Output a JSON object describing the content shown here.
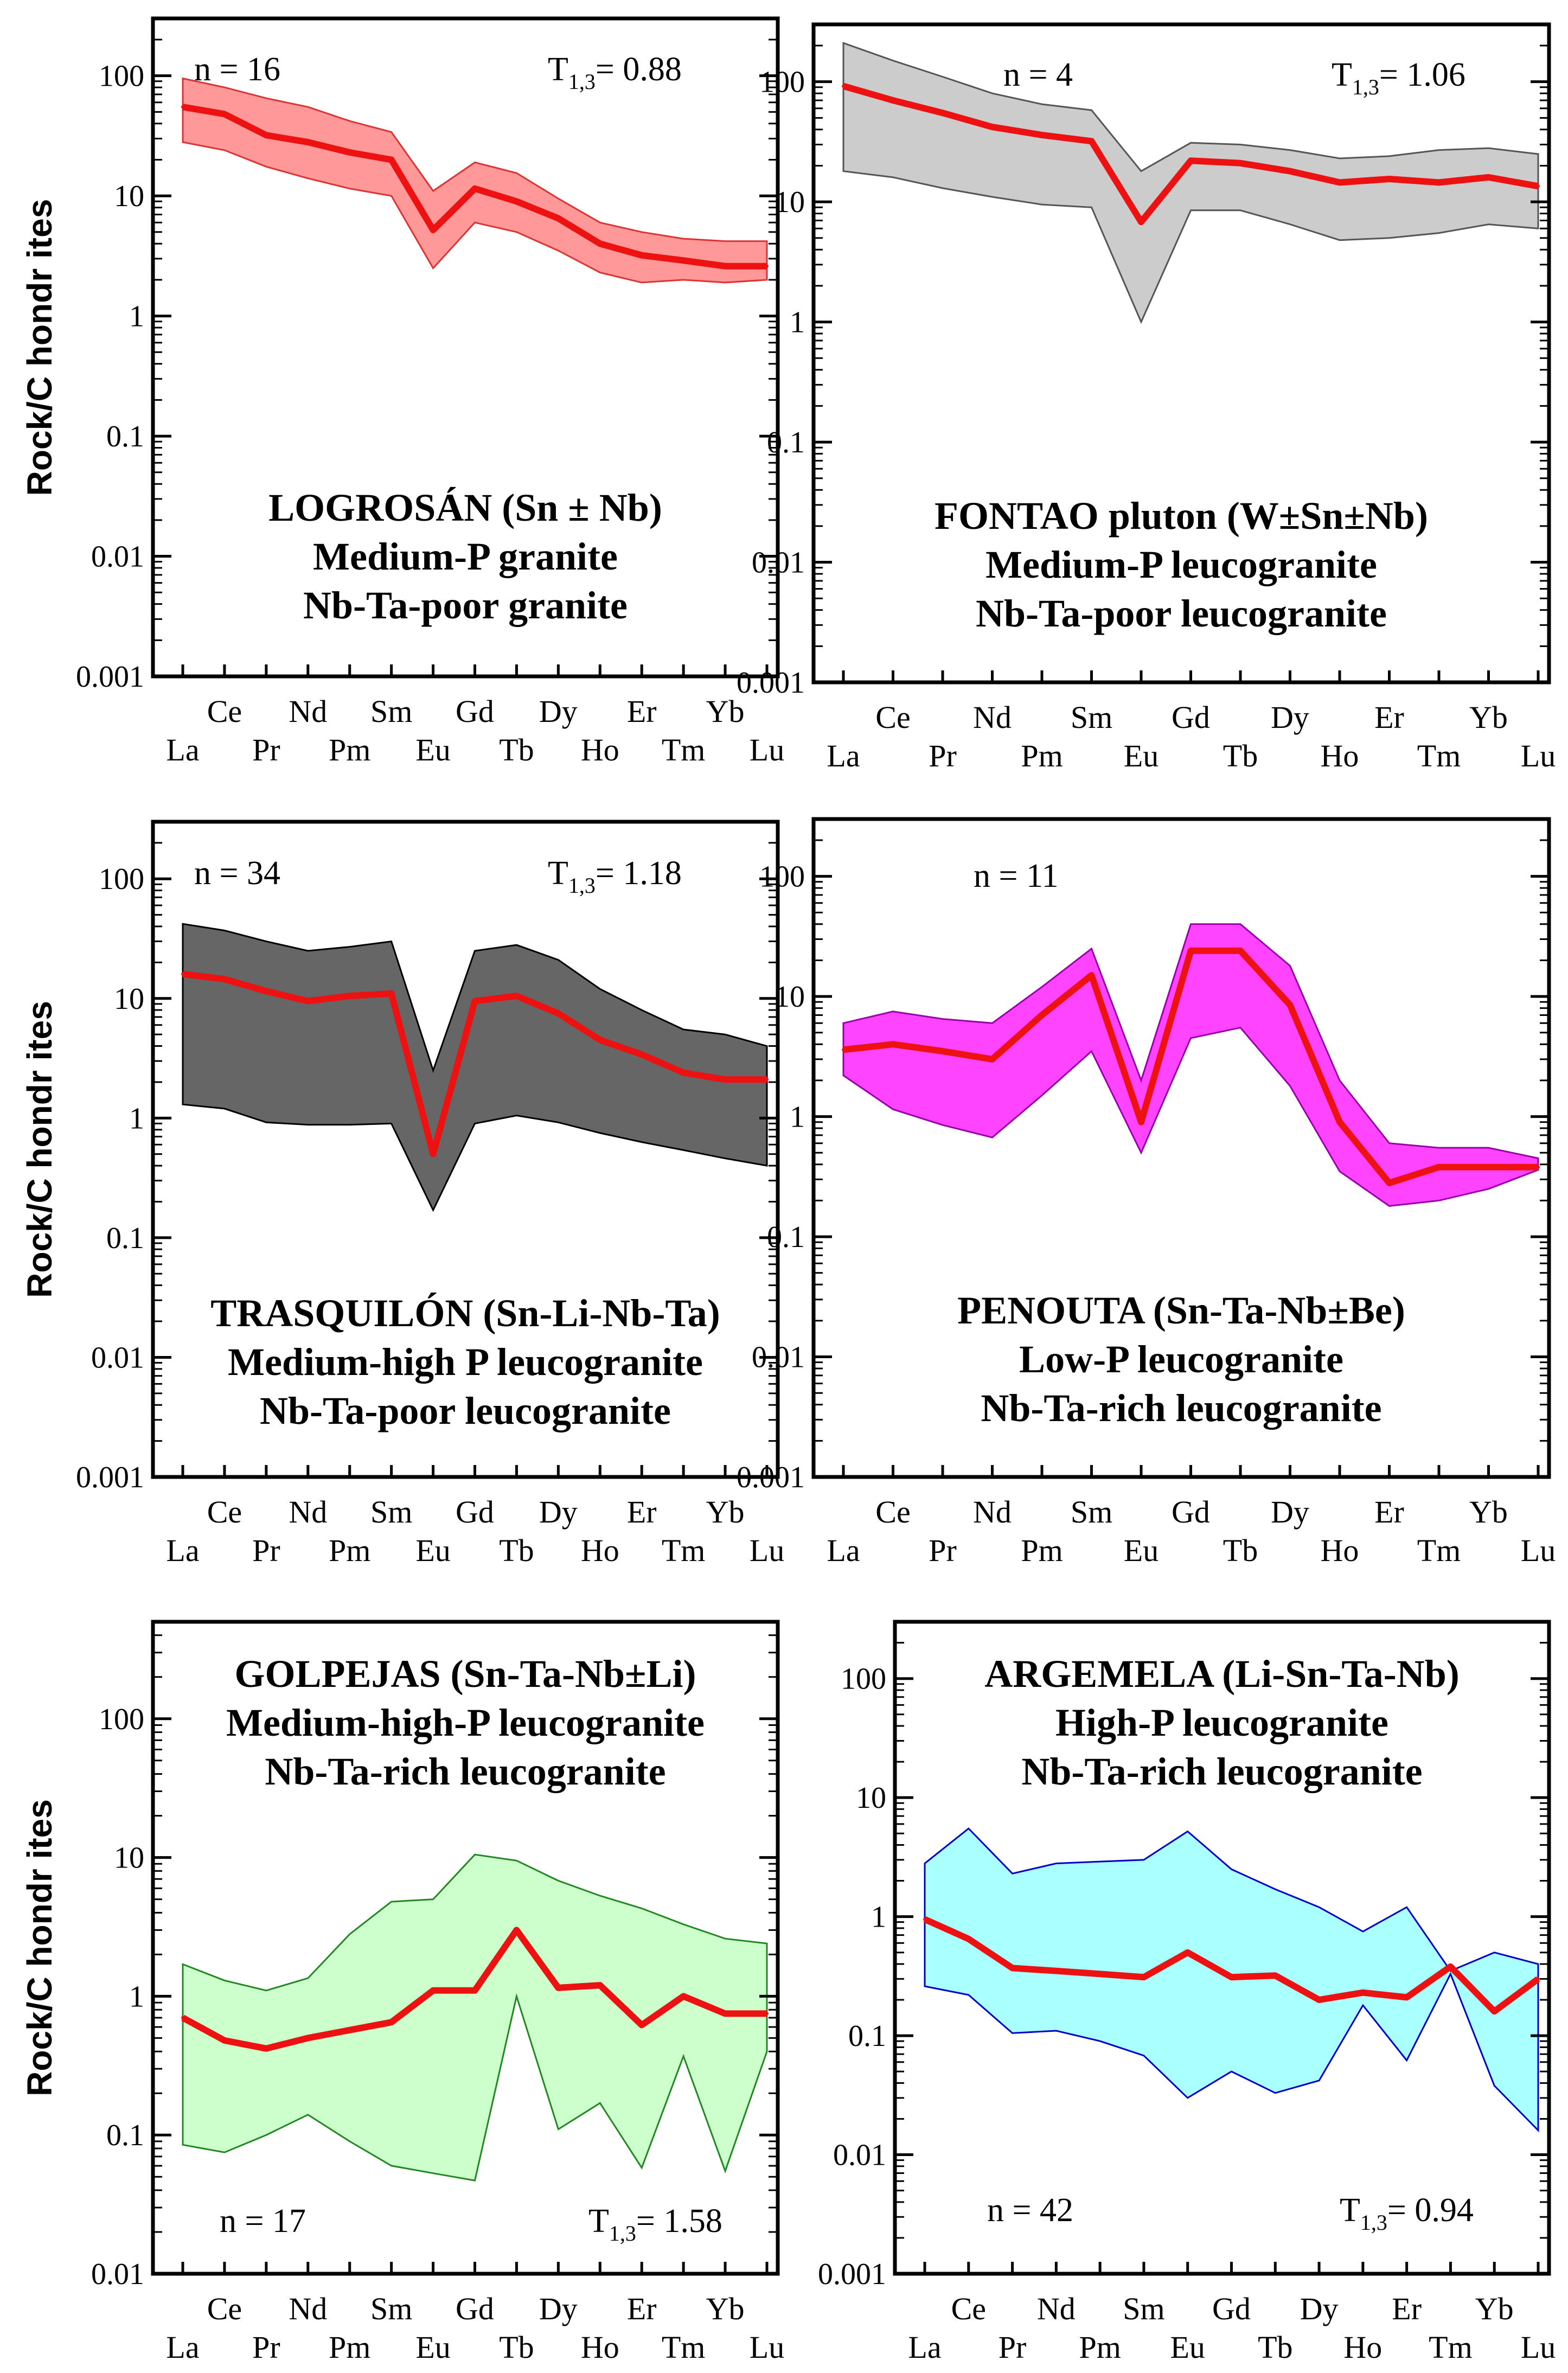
{
  "chart_data": [
    {
      "type": "area",
      "title": [
        "LOGROSÁN (Sn ± Nb)",
        "Medium-P granite",
        "Nb-Ta-poor granite"
      ],
      "ylabel": "Rock/C hondr ites",
      "yscale": "log",
      "ylim": [
        0.001,
        300
      ],
      "yticks": [
        100,
        10,
        1,
        0.1,
        0.01,
        0.001
      ],
      "ytick_labels": [
        "100",
        "10",
        "1",
        "0.1",
        "0.01",
        "0.001"
      ],
      "categories": [
        "La",
        "Ce",
        "Pr",
        "Nd",
        "Pm",
        "Sm",
        "Eu",
        "Gd",
        "Tb",
        "Dy",
        "Ho",
        "Er",
        "Tm",
        "Yb",
        "Lu"
      ],
      "n_label": "n = 16",
      "t_label": {
        "main": "T",
        "sub": "1,3",
        "value": "= 0.88"
      },
      "band_fill": "#ff9999",
      "band_stroke": "#dd3333",
      "series": [
        {
          "name": "mean",
          "values": [
            55,
            48,
            32,
            28,
            23,
            20,
            5.2,
            11.5,
            9,
            6.5,
            4,
            3.2,
            2.9,
            2.6,
            2.6
          ]
        },
        {
          "name": "max",
          "values": [
            95,
            80,
            65,
            55,
            42,
            34,
            11,
            19,
            15.5,
            9.5,
            6,
            5,
            4.4,
            4.2,
            4.2
          ]
        },
        {
          "name": "min",
          "values": [
            28,
            24,
            17.5,
            14,
            11.5,
            10,
            2.5,
            6,
            5,
            3.5,
            2.3,
            1.9,
            2,
            1.9,
            2
          ]
        }
      ]
    },
    {
      "type": "area",
      "title": [
        "FONTAO pluton (W±Sn±Nb)",
        "Medium-P leucogranite",
        "Nb-Ta-poor leucogranite"
      ],
      "ylabel": "",
      "yscale": "log",
      "ylim": [
        0.001,
        300
      ],
      "yticks": [
        100,
        10,
        1,
        0.1,
        0.01,
        0.001
      ],
      "ytick_labels": [
        "100",
        "10",
        "1",
        "0.1",
        "0.01",
        "0.001"
      ],
      "categories": [
        "La",
        "Ce",
        "Pr",
        "Nd",
        "Pm",
        "Sm",
        "Eu",
        "Gd",
        "Tb",
        "Dy",
        "Ho",
        "Er",
        "Tm",
        "Yb",
        "Lu"
      ],
      "n_label": "n = 4",
      "t_label": {
        "main": "T",
        "sub": "1,3",
        "value": "= 1.06"
      },
      "band_fill": "#cccccc",
      "band_stroke": "#555555",
      "series": [
        {
          "name": "mean",
          "values": [
            92,
            70,
            55,
            42,
            36,
            32,
            6.8,
            22,
            21,
            18,
            14.5,
            15.5,
            14.5,
            16,
            13.5
          ]
        },
        {
          "name": "max",
          "values": [
            210,
            150,
            110,
            80,
            65,
            58,
            18,
            31,
            30,
            27,
            23,
            24,
            27,
            28,
            25
          ]
        },
        {
          "name": "min",
          "values": [
            18,
            16,
            13,
            11,
            9.5,
            9,
            1,
            8.5,
            8.5,
            6.5,
            4.8,
            5,
            5.5,
            6.5,
            6
          ]
        }
      ]
    },
    {
      "type": "area",
      "title": [
        "TRASQUILÓN (Sn-Li-Nb-Ta)",
        "Medium-high P leucogranite",
        "Nb-Ta-poor leucogranite"
      ],
      "ylabel": "Rock/C hondr ites",
      "yscale": "log",
      "ylim": [
        0.001,
        300
      ],
      "yticks": [
        100,
        10,
        1,
        0.1,
        0.01,
        0.001
      ],
      "ytick_labels": [
        "100",
        "10",
        "1",
        "0.1",
        "0.01",
        "0.001"
      ],
      "categories": [
        "La",
        "Ce",
        "Pr",
        "Nd",
        "Pm",
        "Sm",
        "Eu",
        "Gd",
        "Tb",
        "Dy",
        "Ho",
        "Er",
        "Tm",
        "Yb",
        "Lu"
      ],
      "n_label": "n = 34",
      "t_label": {
        "main": "T",
        "sub": "1,3",
        "value": "= 1.18"
      },
      "band_fill": "#666666",
      "band_stroke": "#000000",
      "series": [
        {
          "name": "mean",
          "values": [
            16,
            14.5,
            11.5,
            9.5,
            10.5,
            11,
            0.5,
            9.5,
            10.5,
            7.5,
            4.5,
            3.4,
            2.4,
            2.1,
            2.1
          ]
        },
        {
          "name": "max",
          "values": [
            42,
            37,
            30,
            25,
            27,
            30,
            2.5,
            25,
            28,
            21,
            12,
            8,
            5.5,
            5,
            4
          ]
        },
        {
          "name": "min",
          "values": [
            1.3,
            1.2,
            0.92,
            0.88,
            0.88,
            0.9,
            0.17,
            0.9,
            1.05,
            0.92,
            0.75,
            0.63,
            0.54,
            0.46,
            0.4
          ]
        }
      ]
    },
    {
      "type": "area",
      "title": [
        "PENOUTA (Sn-Ta-Nb±Be)",
        "Low-P leucogranite",
        "Nb-Ta-rich leucogranite"
      ],
      "ylabel": "",
      "yscale": "log",
      "ylim": [
        0.001,
        300
      ],
      "yticks": [
        100,
        10,
        1,
        0.1,
        0.01,
        0.001
      ],
      "ytick_labels": [
        "100",
        "10",
        "1",
        "0.1",
        "0.01",
        "0.001"
      ],
      "categories": [
        "La",
        "Ce",
        "Pr",
        "Nd",
        "Pm",
        "Sm",
        "Eu",
        "Gd",
        "Tb",
        "Dy",
        "Ho",
        "Er",
        "Tm",
        "Yb",
        "Lu"
      ],
      "n_label": "n = 11",
      "t_label": null,
      "band_fill": "#ff44ff",
      "band_stroke": "#9900aa",
      "series": [
        {
          "name": "mean",
          "values": [
            3.6,
            4,
            3.5,
            3,
            7,
            15,
            0.9,
            24,
            24,
            8.5,
            0.9,
            0.28,
            0.38,
            0.38,
            0.38
          ]
        },
        {
          "name": "max",
          "values": [
            6,
            7.5,
            6.5,
            6,
            12,
            25,
            2,
            40,
            40,
            18,
            2,
            0.6,
            0.55,
            0.55,
            0.45
          ]
        },
        {
          "name": "min",
          "values": [
            2.2,
            1.15,
            0.85,
            0.67,
            1.5,
            3.5,
            0.5,
            4.5,
            5.5,
            1.8,
            0.35,
            0.18,
            0.2,
            0.25,
            0.36
          ]
        }
      ]
    },
    {
      "type": "area",
      "title": [
        "GOLPEJAS (Sn-Ta-Nb±Li)",
        "Medium-high-P leucogranite",
        "Nb-Ta-rich leucogranite"
      ],
      "ylabel": "Rock/C hondr ites",
      "yscale": "log",
      "ylim": [
        0.01,
        500
      ],
      "yticks": [
        100,
        10,
        1,
        0.1,
        0.01
      ],
      "ytick_labels": [
        "100",
        "10",
        "1",
        "0.1",
        "0.01"
      ],
      "categories": [
        "La",
        "Ce",
        "Pr",
        "Nd",
        "Pm",
        "Sm",
        "Eu",
        "Gd",
        "Tb",
        "Dy",
        "Ho",
        "Er",
        "Tm",
        "Yb",
        "Lu"
      ],
      "n_label": "n = 17",
      "t_label": {
        "main": "T",
        "sub": "1,3",
        "value": "= 1.58"
      },
      "band_fill": "#ccffcc",
      "band_stroke": "#228822",
      "series": [
        {
          "name": "mean",
          "values": [
            0.7,
            0.48,
            0.42,
            0.5,
            0.57,
            0.65,
            1.1,
            1.1,
            3,
            1.15,
            1.2,
            0.62,
            1,
            0.75,
            0.75
          ]
        },
        {
          "name": "max",
          "values": [
            1.7,
            1.3,
            1.1,
            1.35,
            2.8,
            4.8,
            5,
            10.5,
            9.5,
            6.8,
            5.3,
            4.3,
            3.3,
            2.6,
            2.4
          ]
        },
        {
          "name": "min",
          "values": [
            0.085,
            0.075,
            0.1,
            0.14,
            0.09,
            0.06,
            0.053,
            0.047,
            1,
            0.11,
            0.17,
            0.058,
            0.37,
            0.055,
            0.4
          ]
        }
      ]
    },
    {
      "type": "area",
      "title": [
        "ARGEMELA (Li-Sn-Ta-Nb)",
        "High-P leucogranite",
        "Nb-Ta-rich leucogranite"
      ],
      "ylabel": "",
      "yscale": "log",
      "ylim": [
        0.001,
        300
      ],
      "yticks": [
        100,
        10,
        1,
        0.1,
        0.01,
        0.001
      ],
      "ytick_labels": [
        "100",
        "10",
        "1",
        "0.1",
        "0.01",
        "0.001"
      ],
      "categories": [
        "La",
        "Ce",
        "Pr",
        "Nd",
        "Pm",
        "Sm",
        "Eu",
        "Gd",
        "Tb",
        "Dy",
        "Ho",
        "Er",
        "Tm",
        "Yb",
        "Lu"
      ],
      "n_label": "n = 42",
      "t_label": {
        "main": "T",
        "sub": "1,3",
        "value": "= 0.94"
      },
      "band_fill": "#aaffff",
      "band_stroke": "#0000cc",
      "series": [
        {
          "name": "mean",
          "values": [
            0.95,
            0.65,
            0.37,
            0.35,
            0.33,
            0.31,
            0.5,
            0.31,
            0.32,
            0.2,
            0.23,
            0.21,
            0.38,
            0.16,
            0.3
          ]
        },
        {
          "name": "max",
          "values": [
            2.8,
            5.5,
            2.3,
            2.8,
            2.9,
            3,
            5.2,
            2.5,
            1.7,
            1.2,
            0.75,
            1.2,
            0.35,
            0.5,
            0.4
          ]
        },
        {
          "name": "min",
          "values": [
            0.26,
            0.22,
            0.105,
            0.11,
            0.09,
            0.068,
            0.03,
            0.05,
            0.033,
            0.042,
            0.18,
            0.062,
            0.33,
            0.038,
            0.016
          ]
        }
      ]
    }
  ]
}
